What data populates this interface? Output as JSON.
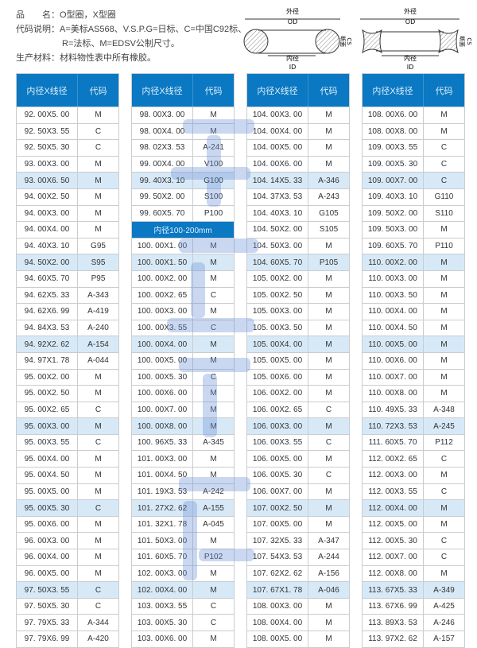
{
  "info": {
    "product": "品　　名：O型圈，X型圈",
    "code_line1": "代码说明：A=美标AS568、V.S.P.G=日标、C=中国C92标、",
    "code_line2": "R=法标、M=EDSV公制尺寸。",
    "material": "生产材料：材料物性表中所有橡胶。"
  },
  "diagram": {
    "od_cn": "外径",
    "od": "OD",
    "id_cn": "内径",
    "id": "ID",
    "cs_cn": "断面",
    "cs": "CS"
  },
  "table_header": {
    "size": "内径X线径",
    "code": "代码"
  },
  "accent": "#0a78c2",
  "highlight": "#d7e9f7",
  "columns": [
    [
      [
        "92. 00X5. 00",
        "M"
      ],
      [
        "92. 50X3. 55",
        "C"
      ],
      [
        "92. 50X5. 30",
        "C"
      ],
      [
        "93. 00X3. 00",
        "M"
      ],
      [
        "93. 00X6. 50",
        "M"
      ],
      [
        "94. 00X2. 50",
        "M"
      ],
      [
        "94. 00X3. 00",
        "M"
      ],
      [
        "94. 00X4. 00",
        "M"
      ],
      [
        "94. 40X3. 10",
        "G95"
      ],
      [
        "94. 50X2. 00",
        "S95"
      ],
      [
        "94. 60X5. 70",
        "P95"
      ],
      [
        "94. 62X5. 33",
        "A-343"
      ],
      [
        "94. 62X6. 99",
        "A-419"
      ],
      [
        "94. 84X3. 53",
        "A-240"
      ],
      [
        "94. 92X2. 62",
        "A-154"
      ],
      [
        "94. 97X1. 78",
        "A-044"
      ],
      [
        "95. 00X2. 00",
        "M"
      ],
      [
        "95. 00X2. 50",
        "M"
      ],
      [
        "95. 00X2. 65",
        "C"
      ],
      [
        "95. 00X3. 00",
        "M"
      ],
      [
        "95. 00X3. 55",
        "C"
      ],
      [
        "95. 00X4. 00",
        "M"
      ],
      [
        "95. 00X4. 50",
        "M"
      ],
      [
        "95. 00X5. 00",
        "M"
      ],
      [
        "95. 00X5. 30",
        "C"
      ],
      [
        "95. 00X6. 00",
        "M"
      ],
      [
        "96. 00X3. 00",
        "M"
      ],
      [
        "96. 00X4. 00",
        "M"
      ],
      [
        "96. 00X5. 00",
        "M"
      ],
      [
        "97. 50X3. 55",
        "C"
      ],
      [
        "97. 50X5. 30",
        "C"
      ],
      [
        "97. 79X5. 33",
        "A-344"
      ],
      [
        "97. 79X6. 99",
        "A-420"
      ]
    ],
    [
      [
        "98. 00X3. 00",
        "M"
      ],
      [
        "98. 00X4. 00",
        "M"
      ],
      [
        "98. 02X3. 53",
        "A-241"
      ],
      [
        "99. 00X4. 00",
        "V100"
      ],
      [
        "99. 40X3. 10",
        "G100"
      ],
      [
        "99. 50X2. 00",
        "S100"
      ],
      [
        "99. 60X5. 70",
        "P100"
      ],
      [
        "内径100-200mm"
      ],
      [
        "100. 00X1. 00",
        "M"
      ],
      [
        "100. 00X1. 50",
        "M"
      ],
      [
        "100. 00X2. 00",
        "M"
      ],
      [
        "100. 00X2. 65",
        "C"
      ],
      [
        "100. 00X3. 00",
        "M"
      ],
      [
        "100. 00X3. 55",
        "C"
      ],
      [
        "100. 00X4. 00",
        "M"
      ],
      [
        "100. 00X5. 00",
        "M"
      ],
      [
        "100. 00X5. 30",
        "C"
      ],
      [
        "100. 00X6. 00",
        "M"
      ],
      [
        "100. 00X7. 00",
        "M"
      ],
      [
        "100. 00X8. 00",
        "M"
      ],
      [
        "100. 96X5. 33",
        "A-345"
      ],
      [
        "101. 00X3. 00",
        "M"
      ],
      [
        "101. 00X4. 50",
        "M"
      ],
      [
        "101. 19X3. 53",
        "A-242"
      ],
      [
        "101. 27X2. 62",
        "A-155"
      ],
      [
        "101. 32X1. 78",
        "A-045"
      ],
      [
        "101. 50X3. 00",
        "M"
      ],
      [
        "101. 60X5. 70",
        "P102"
      ],
      [
        "102. 00X3. 00",
        "M"
      ],
      [
        "102. 00X4. 00",
        "M"
      ],
      [
        "103. 00X3. 55",
        "C"
      ],
      [
        "103. 00X5. 30",
        "C"
      ],
      [
        "103. 00X6. 00",
        "M"
      ]
    ],
    [
      [
        "104. 00X3. 00",
        "M"
      ],
      [
        "104. 00X4. 00",
        "M"
      ],
      [
        "104. 00X5. 00",
        "M"
      ],
      [
        "104. 00X6. 00",
        "M"
      ],
      [
        "104. 14X5. 33",
        "A-346"
      ],
      [
        "104. 37X3. 53",
        "A-243"
      ],
      [
        "104. 40X3. 10",
        "G105"
      ],
      [
        "104. 50X2. 00",
        "S105"
      ],
      [
        "104. 50X3. 00",
        "M"
      ],
      [
        "104. 60X5. 70",
        "P105"
      ],
      [
        "105. 00X2. 00",
        "M"
      ],
      [
        "105. 00X2. 50",
        "M"
      ],
      [
        "105. 00X3. 00",
        "M"
      ],
      [
        "105. 00X3. 50",
        "M"
      ],
      [
        "105. 00X4. 00",
        "M"
      ],
      [
        "105. 00X5. 00",
        "M"
      ],
      [
        "105. 00X6. 00",
        "M"
      ],
      [
        "106. 00X2. 00",
        "M"
      ],
      [
        "106. 00X2. 65",
        "C"
      ],
      [
        "106. 00X3. 00",
        "M"
      ],
      [
        "106. 00X3. 55",
        "C"
      ],
      [
        "106. 00X5. 00",
        "M"
      ],
      [
        "106. 00X5. 30",
        "C"
      ],
      [
        "106. 00X7. 00",
        "M"
      ],
      [
        "107. 00X2. 50",
        "M"
      ],
      [
        "107. 00X5. 00",
        "M"
      ],
      [
        "107. 32X5. 33",
        "A-347"
      ],
      [
        "107. 54X3. 53",
        "A-244"
      ],
      [
        "107. 62X2. 62",
        "A-156"
      ],
      [
        "107. 67X1. 78",
        "A-046"
      ],
      [
        "108. 00X3. 00",
        "M"
      ],
      [
        "108. 00X4. 00",
        "M"
      ],
      [
        "108. 00X5. 00",
        "M"
      ]
    ],
    [
      [
        "108. 00X6. 00",
        "M"
      ],
      [
        "108. 00X8. 00",
        "M"
      ],
      [
        "109. 00X3. 55",
        "C"
      ],
      [
        "109. 00X5. 30",
        "C"
      ],
      [
        "109. 00X7. 00",
        "C"
      ],
      [
        "109. 40X3. 10",
        "G110"
      ],
      [
        "109. 50X2. 00",
        "S110"
      ],
      [
        "109. 50X3. 00",
        "M"
      ],
      [
        "109. 60X5. 70",
        "P110"
      ],
      [
        "110. 00X2. 00",
        "M"
      ],
      [
        "110. 00X3. 00",
        "M"
      ],
      [
        "110. 00X3. 50",
        "M"
      ],
      [
        "110. 00X4. 00",
        "M"
      ],
      [
        "110. 00X4. 50",
        "M"
      ],
      [
        "110. 00X5. 00",
        "M"
      ],
      [
        "110. 00X6. 00",
        "M"
      ],
      [
        "110. 00X7. 00",
        "M"
      ],
      [
        "110. 00X8. 00",
        "M"
      ],
      [
        "110. 49X5. 33",
        "A-348"
      ],
      [
        "110. 72X3. 53",
        "A-245"
      ],
      [
        "111. 60X5. 70",
        "P112"
      ],
      [
        "112. 00X2. 65",
        "C"
      ],
      [
        "112. 00X3. 00",
        "M"
      ],
      [
        "112. 00X3. 55",
        "C"
      ],
      [
        "112. 00X4. 00",
        "M"
      ],
      [
        "112. 00X5. 00",
        "M"
      ],
      [
        "112. 00X5. 30",
        "C"
      ],
      [
        "112. 00X7. 00",
        "C"
      ],
      [
        "112. 00X8. 00",
        "M"
      ],
      [
        "113. 67X5. 33",
        "A-349"
      ],
      [
        "113. 67X6. 99",
        "A-425"
      ],
      [
        "113. 89X3. 53",
        "A-246"
      ],
      [
        "113. 97X2. 62",
        "A-157"
      ]
    ]
  ]
}
